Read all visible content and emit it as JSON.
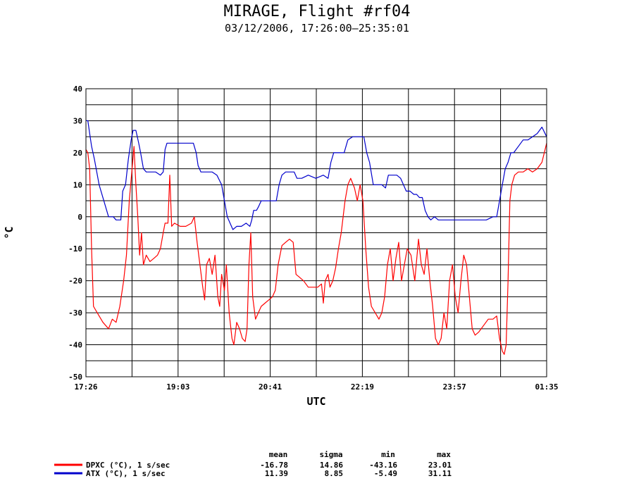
{
  "header": {
    "title": "MIRAGE, Flight #rf04",
    "subtitle": "03/12/2006, 17:26:00–25:35:01"
  },
  "chart_data": {
    "type": "line",
    "title": "MIRAGE, Flight #rf04",
    "subtitle": "03/12/2006, 17:26:00–25:35:01",
    "xlabel": "UTC",
    "ylabel": "°C",
    "x_tick_labels": [
      "17:26",
      "19:03",
      "20:41",
      "22:19",
      "23:57",
      "01:35"
    ],
    "x_range": [
      "17:26",
      "01:35"
    ],
    "ylim": [
      -50,
      40
    ],
    "y_ticks": [
      40,
      30,
      20,
      10,
      0,
      -10,
      -20,
      -30,
      -40,
      -50
    ],
    "y_tick_labels": [
      "40",
      "30",
      "20",
      "10",
      "0",
      "-10",
      "-20",
      "-30",
      "-40",
      "-50"
    ],
    "grid": true,
    "legend_position": "bottom-left",
    "stats_headers": [
      "mean",
      "sigma",
      "min",
      "max"
    ],
    "series": [
      {
        "name": "DPXC (°C), 1 s/sec",
        "color": "#ff0000",
        "stats": [
          "-16.78",
          "14.86",
          "-43.16",
          "23.01"
        ],
        "points": [
          [
            "17:26",
            21
          ],
          [
            "17:28",
            20
          ],
          [
            "17:30",
            15
          ],
          [
            "17:32",
            -10
          ],
          [
            "17:34",
            -28
          ],
          [
            "17:38",
            -30
          ],
          [
            "17:44",
            -33
          ],
          [
            "17:50",
            -35
          ],
          [
            "17:54",
            -32
          ],
          [
            "17:58",
            -33
          ],
          [
            "18:02",
            -28
          ],
          [
            "18:06",
            -20
          ],
          [
            "18:09",
            -12
          ],
          [
            "18:12",
            5
          ],
          [
            "18:15",
            15
          ],
          [
            "18:17",
            22
          ],
          [
            "18:19",
            10
          ],
          [
            "18:21",
            0
          ],
          [
            "18:23",
            -12
          ],
          [
            "18:25",
            -5
          ],
          [
            "18:27",
            -15
          ],
          [
            "18:30",
            -12
          ],
          [
            "18:34",
            -14
          ],
          [
            "18:38",
            -13
          ],
          [
            "18:42",
            -12
          ],
          [
            "18:45",
            -10
          ],
          [
            "18:48",
            -5
          ],
          [
            "18:50",
            -2
          ],
          [
            "18:53",
            -2
          ],
          [
            "18:55",
            13
          ],
          [
            "18:57",
            -3
          ],
          [
            "19:00",
            -2
          ],
          [
            "19:06",
            -3
          ],
          [
            "19:12",
            -3
          ],
          [
            "19:18",
            -2
          ],
          [
            "19:21",
            0
          ],
          [
            "19:24",
            -8
          ],
          [
            "19:27",
            -15
          ],
          [
            "19:30",
            -22
          ],
          [
            "19:32",
            -26
          ],
          [
            "19:34",
            -15
          ],
          [
            "19:37",
            -13
          ],
          [
            "19:40",
            -18
          ],
          [
            "19:43",
            -12
          ],
          [
            "19:46",
            -25
          ],
          [
            "19:48",
            -28
          ],
          [
            "19:50",
            -18
          ],
          [
            "19:53",
            -23
          ],
          [
            "19:55",
            -15
          ],
          [
            "19:58",
            -30
          ],
          [
            "20:01",
            -38
          ],
          [
            "20:03",
            -40
          ],
          [
            "20:06",
            -33
          ],
          [
            "20:09",
            -35
          ],
          [
            "20:12",
            -38
          ],
          [
            "20:15",
            -39
          ],
          [
            "20:17",
            -35
          ],
          [
            "20:19",
            -15
          ],
          [
            "20:21",
            -5
          ],
          [
            "20:23",
            -25
          ],
          [
            "20:26",
            -32
          ],
          [
            "20:29",
            -30
          ],
          [
            "20:32",
            -28
          ],
          [
            "20:36",
            -27
          ],
          [
            "20:40",
            -26
          ],
          [
            "20:44",
            -25
          ],
          [
            "20:47",
            -23
          ],
          [
            "20:50",
            -15
          ],
          [
            "20:54",
            -9
          ],
          [
            "20:58",
            -8
          ],
          [
            "21:02",
            -7
          ],
          [
            "21:06",
            -8
          ],
          [
            "21:09",
            -18
          ],
          [
            "21:13",
            -19
          ],
          [
            "21:17",
            -20
          ],
          [
            "21:22",
            -22
          ],
          [
            "21:27",
            -22
          ],
          [
            "21:32",
            -22
          ],
          [
            "21:36",
            -21
          ],
          [
            "21:38",
            -27
          ],
          [
            "21:40",
            -20
          ],
          [
            "21:43",
            -18
          ],
          [
            "21:45",
            -22
          ],
          [
            "21:48",
            -20
          ],
          [
            "21:51",
            -16
          ],
          [
            "21:54",
            -10
          ],
          [
            "21:57",
            -5
          ],
          [
            "22:01",
            5
          ],
          [
            "22:04",
            10
          ],
          [
            "22:07",
            12
          ],
          [
            "22:11",
            9
          ],
          [
            "22:14",
            5
          ],
          [
            "22:17",
            10
          ],
          [
            "22:20",
            5
          ],
          [
            "22:23",
            -10
          ],
          [
            "22:26",
            -22
          ],
          [
            "22:29",
            -28
          ],
          [
            "22:33",
            -30
          ],
          [
            "22:37",
            -32
          ],
          [
            "22:40",
            -30
          ],
          [
            "22:43",
            -25
          ],
          [
            "22:46",
            -15
          ],
          [
            "22:49",
            -10
          ],
          [
            "22:52",
            -20
          ],
          [
            "22:55",
            -13
          ],
          [
            "22:58",
            -8
          ],
          [
            "23:01",
            -20
          ],
          [
            "23:04",
            -15
          ],
          [
            "23:07",
            -10
          ],
          [
            "23:11",
            -12
          ],
          [
            "23:15",
            -20
          ],
          [
            "23:19",
            -7
          ],
          [
            "23:22",
            -15
          ],
          [
            "23:25",
            -18
          ],
          [
            "23:28",
            -10
          ],
          [
            "23:31",
            -20
          ],
          [
            "23:34",
            -28
          ],
          [
            "23:37",
            -38
          ],
          [
            "23:40",
            -40
          ],
          [
            "23:43",
            -38
          ],
          [
            "23:46",
            -30
          ],
          [
            "23:49",
            -35
          ],
          [
            "23:52",
            -20
          ],
          [
            "23:55",
            -15
          ],
          [
            "23:58",
            -25
          ],
          [
            "24:01",
            -30
          ],
          [
            "24:04",
            -20
          ],
          [
            "24:07",
            -12
          ],
          [
            "24:10",
            -15
          ],
          [
            "24:13",
            -25
          ],
          [
            "24:16",
            -35
          ],
          [
            "24:19",
            -37
          ],
          [
            "24:23",
            -36
          ],
          [
            "24:28",
            -34
          ],
          [
            "24:33",
            -32
          ],
          [
            "24:38",
            -32
          ],
          [
            "24:42",
            -31
          ],
          [
            "24:45",
            -38
          ],
          [
            "24:48",
            -42
          ],
          [
            "24:50",
            -43
          ],
          [
            "24:52",
            -40
          ],
          [
            "24:54",
            -20
          ],
          [
            "24:56",
            5
          ],
          [
            "24:58",
            10
          ],
          [
            "25:01",
            13
          ],
          [
            "25:05",
            14
          ],
          [
            "25:10",
            14
          ],
          [
            "25:15",
            15
          ],
          [
            "25:20",
            14
          ],
          [
            "25:25",
            15
          ],
          [
            "25:30",
            17
          ],
          [
            "25:35",
            23
          ]
        ]
      },
      {
        "name": "ATX (°C), 1 s/sec",
        "color": "#0000cc",
        "stats": [
          "11.39",
          "8.85",
          "-5.49",
          "31.11"
        ],
        "points": [
          [
            "17:26",
            30
          ],
          [
            "17:28",
            30
          ],
          [
            "17:30",
            26
          ],
          [
            "17:32",
            22
          ],
          [
            "17:35",
            18
          ],
          [
            "17:40",
            10
          ],
          [
            "17:45",
            5
          ],
          [
            "17:50",
            0
          ],
          [
            "17:55",
            0
          ],
          [
            "17:58",
            -1
          ],
          [
            "18:03",
            -1
          ],
          [
            "18:05",
            8
          ],
          [
            "18:08",
            10
          ],
          [
            "18:11",
            18
          ],
          [
            "18:14",
            24
          ],
          [
            "18:16",
            27
          ],
          [
            "18:19",
            27
          ],
          [
            "18:22",
            23
          ],
          [
            "18:24",
            20
          ],
          [
            "18:27",
            15
          ],
          [
            "18:30",
            14
          ],
          [
            "18:35",
            14
          ],
          [
            "18:40",
            14
          ],
          [
            "18:45",
            13
          ],
          [
            "18:48",
            14
          ],
          [
            "18:50",
            21
          ],
          [
            "18:52",
            23
          ],
          [
            "18:55",
            23
          ],
          [
            "18:58",
            23
          ],
          [
            "19:03",
            23
          ],
          [
            "19:10",
            23
          ],
          [
            "19:16",
            23
          ],
          [
            "19:20",
            23
          ],
          [
            "19:23",
            20
          ],
          [
            "19:25",
            16
          ],
          [
            "19:28",
            14
          ],
          [
            "19:33",
            14
          ],
          [
            "19:40",
            14
          ],
          [
            "19:45",
            13
          ],
          [
            "19:50",
            10
          ],
          [
            "19:53",
            5
          ],
          [
            "19:56",
            0
          ],
          [
            "19:59",
            -2
          ],
          [
            "20:02",
            -4
          ],
          [
            "20:06",
            -3
          ],
          [
            "20:11",
            -3
          ],
          [
            "20:16",
            -2
          ],
          [
            "20:20",
            -3
          ],
          [
            "20:22",
            -1
          ],
          [
            "20:24",
            2
          ],
          [
            "20:27",
            2
          ],
          [
            "20:29",
            3
          ],
          [
            "20:32",
            5
          ],
          [
            "20:37",
            5
          ],
          [
            "20:43",
            5
          ],
          [
            "20:48",
            5
          ],
          [
            "20:51",
            10
          ],
          [
            "20:54",
            13
          ],
          [
            "20:58",
            14
          ],
          [
            "21:03",
            14
          ],
          [
            "21:07",
            14
          ],
          [
            "21:10",
            12
          ],
          [
            "21:15",
            12
          ],
          [
            "21:22",
            13
          ],
          [
            "21:30",
            12
          ],
          [
            "21:38",
            13
          ],
          [
            "21:43",
            12
          ],
          [
            "21:46",
            17
          ],
          [
            "21:49",
            20
          ],
          [
            "21:53",
            20
          ],
          [
            "21:57",
            20
          ],
          [
            "22:00",
            20
          ],
          [
            "22:04",
            24
          ],
          [
            "22:09",
            25
          ],
          [
            "22:15",
            25
          ],
          [
            "22:21",
            25
          ],
          [
            "22:24",
            20
          ],
          [
            "22:27",
            17
          ],
          [
            "22:31",
            10
          ],
          [
            "22:35",
            10
          ],
          [
            "22:40",
            10
          ],
          [
            "22:44",
            9
          ],
          [
            "22:47",
            13
          ],
          [
            "22:51",
            13
          ],
          [
            "22:56",
            13
          ],
          [
            "23:00",
            12
          ],
          [
            "23:03",
            10
          ],
          [
            "23:06",
            8
          ],
          [
            "23:10",
            8
          ],
          [
            "23:14",
            7
          ],
          [
            "23:17",
            7
          ],
          [
            "23:20",
            6
          ],
          [
            "23:23",
            6
          ],
          [
            "23:26",
            2
          ],
          [
            "23:29",
            0
          ],
          [
            "23:32",
            -1
          ],
          [
            "23:36",
            0
          ],
          [
            "23:40",
            -1
          ],
          [
            "23:44",
            -1
          ],
          [
            "23:50",
            -1
          ],
          [
            "23:56",
            -1
          ],
          [
            "24:03",
            -1
          ],
          [
            "24:10",
            -1
          ],
          [
            "24:17",
            -1
          ],
          [
            "24:24",
            -1
          ],
          [
            "24:31",
            -1
          ],
          [
            "24:38",
            0
          ],
          [
            "24:42",
            0
          ],
          [
            "24:45",
            5
          ],
          [
            "24:48",
            10
          ],
          [
            "24:51",
            15
          ],
          [
            "24:54",
            17
          ],
          [
            "24:57",
            20
          ],
          [
            "25:00",
            20
          ],
          [
            "25:05",
            22
          ],
          [
            "25:10",
            24
          ],
          [
            "25:15",
            24
          ],
          [
            "25:20",
            25
          ],
          [
            "25:25",
            26
          ],
          [
            "25:30",
            28
          ],
          [
            "25:35",
            25
          ]
        ]
      }
    ]
  }
}
